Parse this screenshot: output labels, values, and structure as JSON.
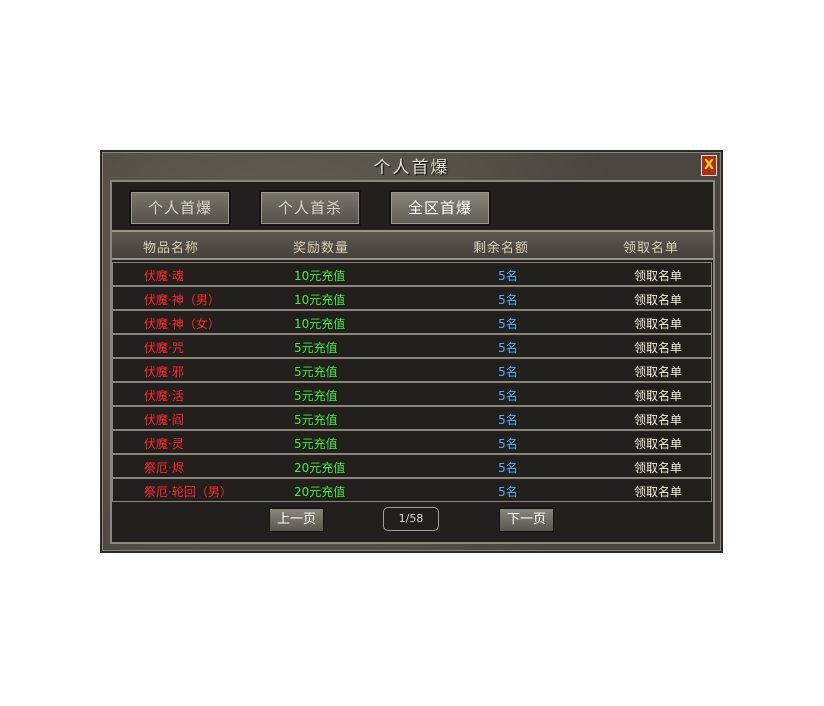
{
  "window": {
    "title": "个人首爆",
    "close_icon": "close-x-icon"
  },
  "tabs": [
    {
      "label": "个人首爆"
    },
    {
      "label": "个人首杀"
    },
    {
      "label": "全区首爆",
      "active": true
    }
  ],
  "columns": [
    "物品名称",
    "奖励数量",
    "剩余名额",
    "领取名单"
  ],
  "rows": [
    {
      "name": "伏魔·魂",
      "reward": "10元充值",
      "remain": "5名",
      "claim": "领取名单"
    },
    {
      "name": "伏魔·神（男）",
      "reward": "10元充值",
      "remain": "5名",
      "claim": "领取名单"
    },
    {
      "name": "伏魔·神（女）",
      "reward": "10元充值",
      "remain": "5名",
      "claim": "领取名单"
    },
    {
      "name": "伏魔·咒",
      "reward": "5元充值",
      "remain": "5名",
      "claim": "领取名单"
    },
    {
      "name": "伏魔·邪",
      "reward": "5元充值",
      "remain": "5名",
      "claim": "领取名单"
    },
    {
      "name": "伏魔·活",
      "reward": "5元充值",
      "remain": "5名",
      "claim": "领取名单"
    },
    {
      "name": "伏魔·阎",
      "reward": "5元充值",
      "remain": "5名",
      "claim": "领取名单"
    },
    {
      "name": "伏魔·灵",
      "reward": "5元充值",
      "remain": "5名",
      "claim": "领取名单"
    },
    {
      "name": "祭厄·烬",
      "reward": "20元充值",
      "remain": "5名",
      "claim": "领取名单"
    },
    {
      "name": "祭厄·轮回（男）",
      "reward": "20元充值",
      "remain": "5名",
      "claim": "领取名单"
    }
  ],
  "pagination": {
    "prev": "上一页",
    "page": "1/58",
    "next": "下一页"
  }
}
